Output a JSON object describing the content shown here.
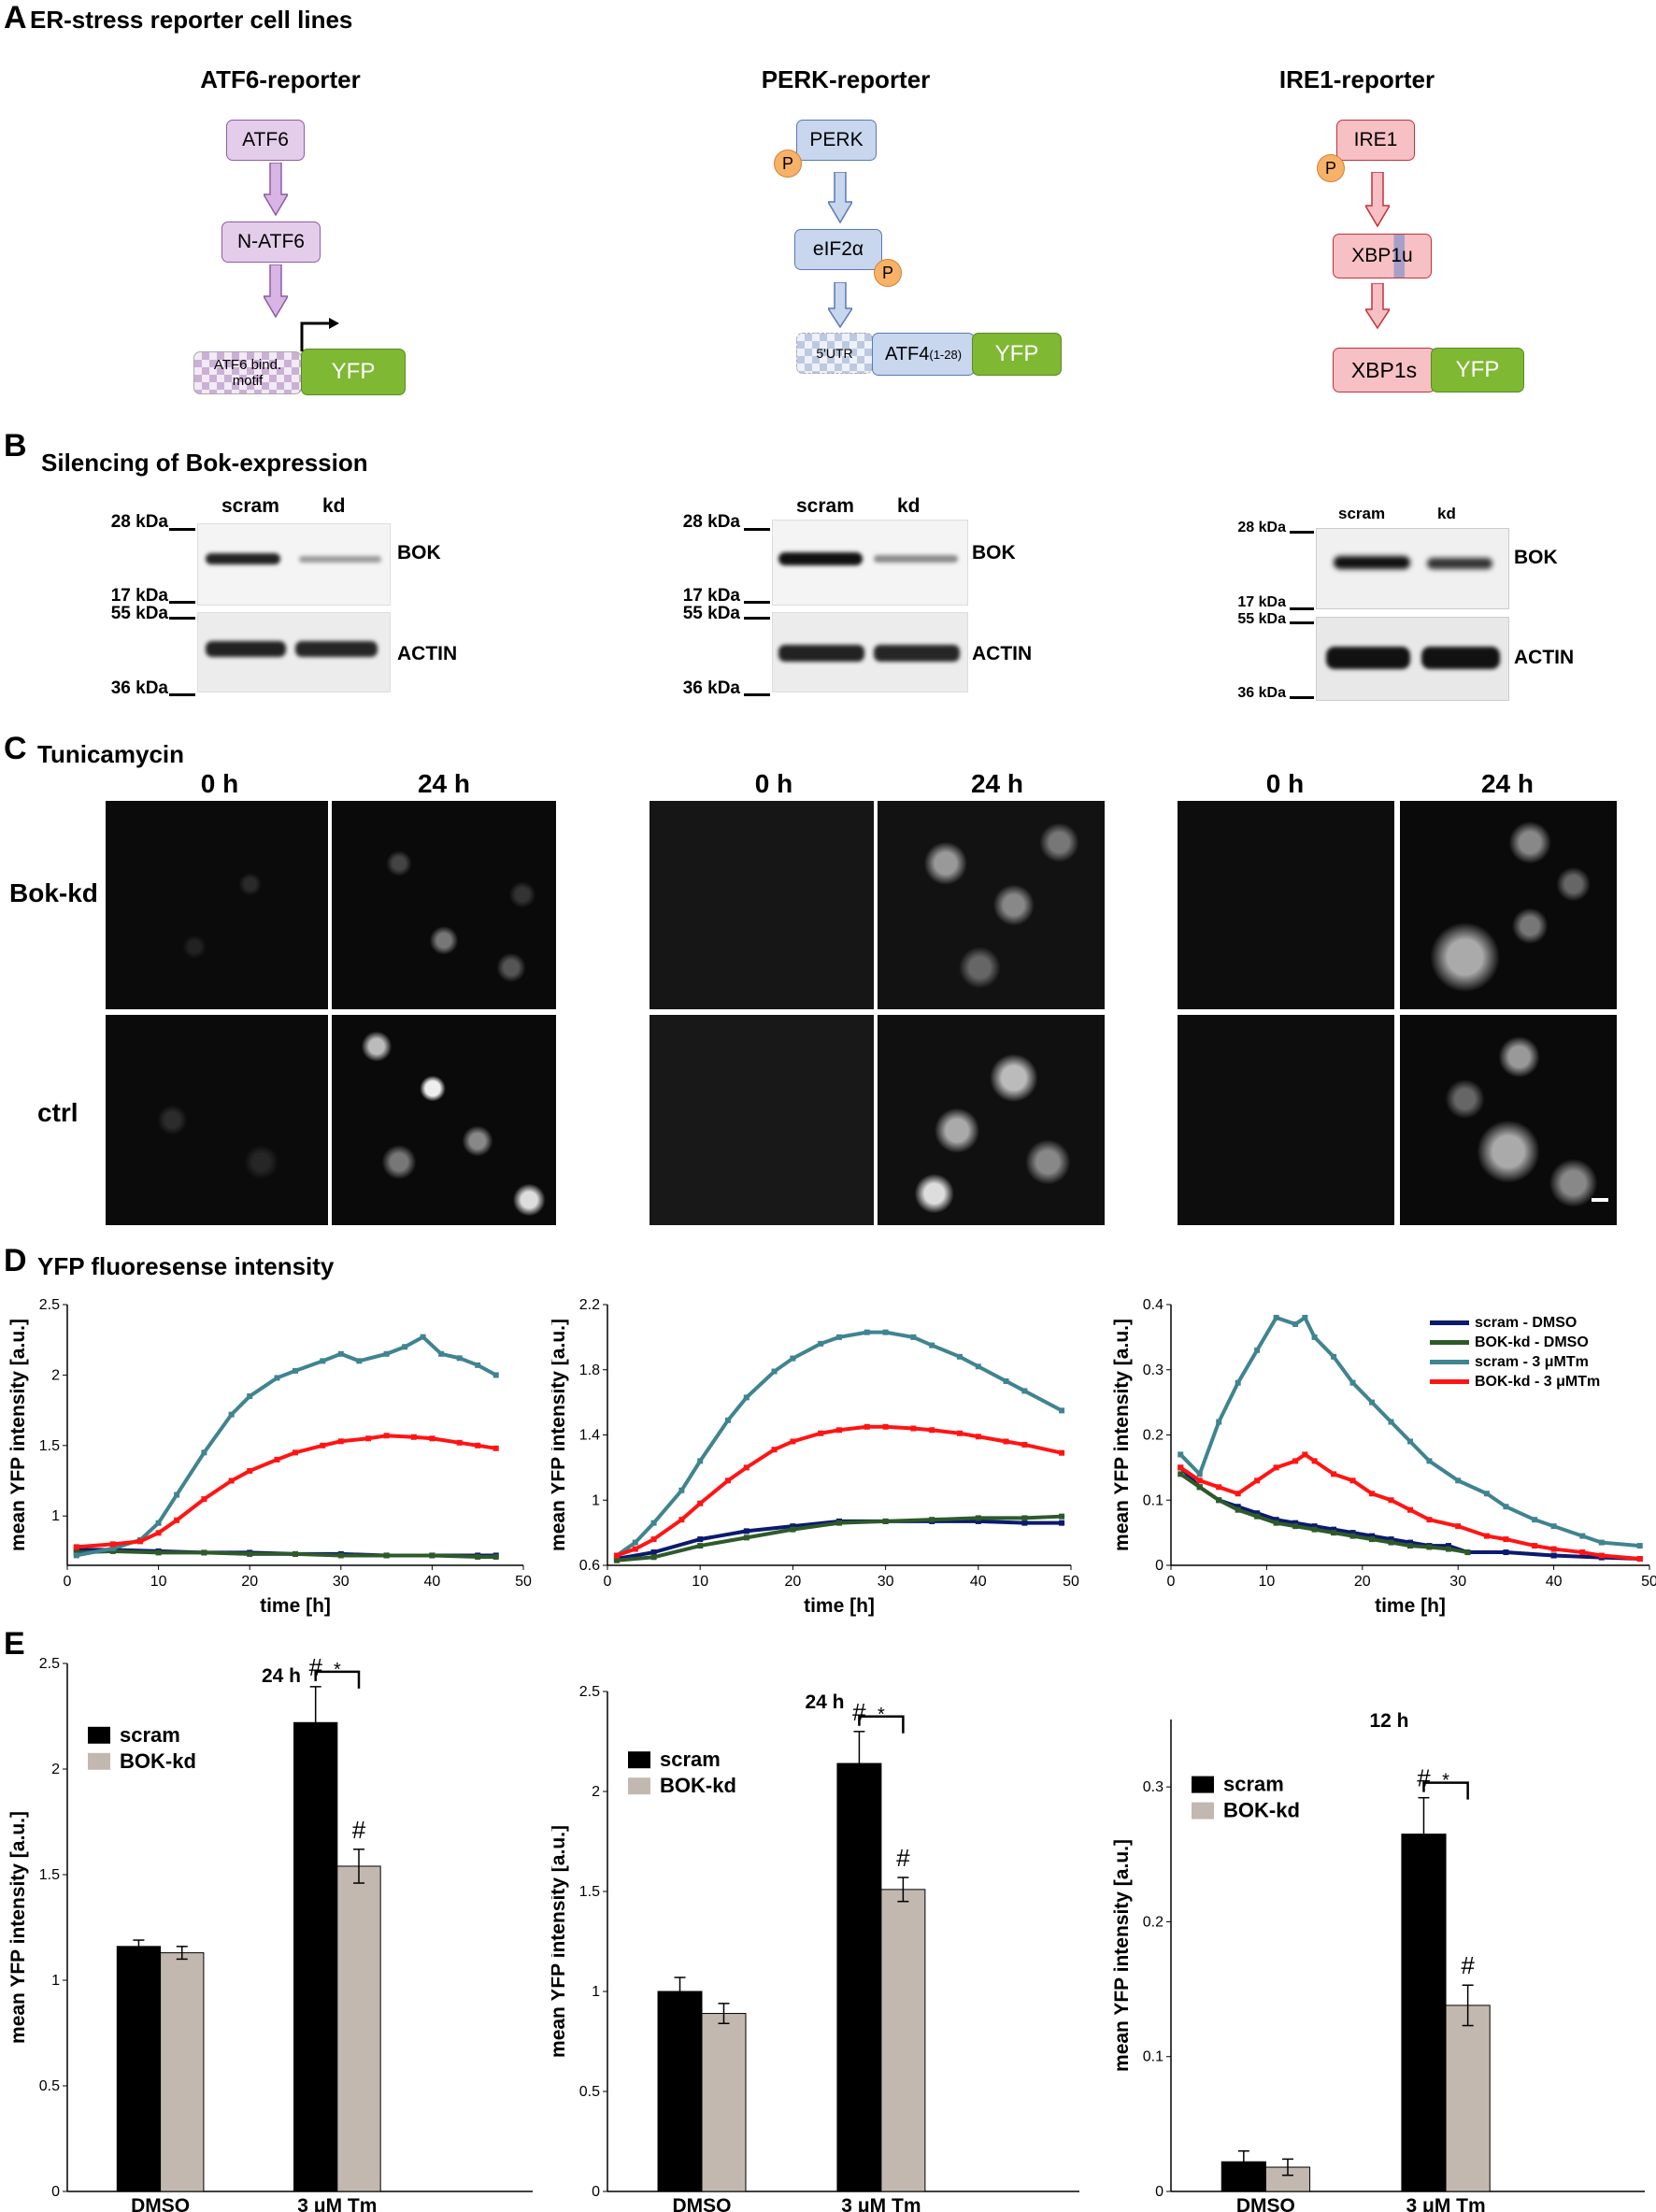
{
  "panelA": {
    "letter": "A",
    "title": "ER-stress reporter cell lines",
    "atf6": {
      "title": "ATF6-reporter",
      "box1": "ATF6",
      "box2": "N-ATF6",
      "motif_line1": "ATF6 bind.",
      "motif_line2": "motif",
      "yfp": "YFP"
    },
    "perk": {
      "title": "PERK-reporter",
      "box1": "PERK",
      "p": "P",
      "box2": "eIF2α",
      "utr": "5'UTR",
      "atf4": "ATF4",
      "atf4_sub": "(1-28)",
      "yfp": "YFP"
    },
    "ire1": {
      "title": "IRE1-reporter",
      "box1": "IRE1",
      "p": "P",
      "box2": "XBP1u",
      "box3": "XBP1s",
      "yfp": "YFP"
    }
  },
  "panelB": {
    "letter": "B",
    "title": "Silencing of Bok-expression",
    "blots": [
      {
        "scram": "scram",
        "kd": "kd",
        "k28": "28 kDa",
        "k17": "17 kDa",
        "k55": "55 kDa",
        "k36": "36 kDa",
        "bok": "BOK",
        "actin": "ACTIN"
      },
      {
        "scram": "scram",
        "kd": "kd",
        "k28": "28 kDa",
        "k17": "17 kDa",
        "k55": "55 kDa",
        "k36": "36 kDa",
        "bok": "BOK",
        "actin": "ACTIN"
      },
      {
        "scram": "scram",
        "kd": "kd",
        "k28": "28 kDa",
        "k17": "17 kDa",
        "k55": "55 kDa",
        "k36": "36 kDa",
        "bok": "BOK",
        "actin": "ACTIN"
      }
    ]
  },
  "panelC": {
    "letter": "C",
    "title": "Tunicamycin",
    "t0": "0 h",
    "t24": "24 h",
    "row1": "Bok-kd",
    "row2": "ctrl"
  },
  "panelD": {
    "letter": "D",
    "title": "YFP fluoresense intensity",
    "xlabel": "time  [h]",
    "ylabel": "mean YFP intensity [a.u.]",
    "legend": [
      "scram    - DMSO",
      "BOK-kd - DMSO",
      "scram    - 3 μMTm",
      "BOK-kd - 3 μMTm"
    ]
  },
  "panelE": {
    "letter": "E",
    "ylabel": "mean YFP intensity [a.u.]",
    "legend_scram": "scram",
    "legend_bok": "BOK-kd",
    "cat1": "DMSO",
    "cat2": "3 μM Tm",
    "hash": "#",
    "star": "*"
  },
  "colors": {
    "scram_dmso": "#0b1a6e",
    "bok_dmso": "#2e5a2a",
    "scram_tm": "#3f8490",
    "bok_tm": "#ff1414",
    "bar_scram": "#000000",
    "bar_bok": "#c2b8af",
    "purple": "#8c5da6",
    "blue": "#5b79b3",
    "red": "#c5303a",
    "green": "#7fb833"
  },
  "chart_data": [
    {
      "type": "line",
      "title": "",
      "xlabel": "time  [h]",
      "ylabel": "mean YFP intensity [a.u.]",
      "xlim": [
        0,
        50
      ],
      "ylim": [
        0.65,
        2.5
      ],
      "xticks": [
        0,
        10,
        20,
        30,
        40,
        50
      ],
      "yticks": [
        1,
        1.5,
        2,
        2.5
      ],
      "series": [
        {
          "name": "scram    - DMSO",
          "x": [
            1,
            5,
            10,
            15,
            20,
            25,
            30,
            35,
            40,
            45,
            47
          ],
          "y": [
            0.76,
            0.76,
            0.75,
            0.74,
            0.74,
            0.73,
            0.73,
            0.72,
            0.72,
            0.72,
            0.72
          ]
        },
        {
          "name": "BOK-kd - DMSO",
          "x": [
            1,
            5,
            10,
            15,
            20,
            25,
            30,
            35,
            40,
            45,
            47
          ],
          "y": [
            0.74,
            0.75,
            0.74,
            0.74,
            0.73,
            0.73,
            0.72,
            0.72,
            0.72,
            0.71,
            0.71
          ]
        },
        {
          "name": "scram    - 3 μMTm",
          "x": [
            1,
            5,
            8,
            10,
            12,
            15,
            18,
            20,
            23,
            25,
            28,
            30,
            32,
            35,
            37,
            39,
            41,
            43,
            45,
            47
          ],
          "y": [
            0.72,
            0.77,
            0.83,
            0.95,
            1.15,
            1.45,
            1.72,
            1.85,
            1.98,
            2.03,
            2.1,
            2.15,
            2.1,
            2.15,
            2.2,
            2.27,
            2.15,
            2.12,
            2.07,
            2.0
          ]
        },
        {
          "name": "BOK-kd - 3 μMTm",
          "x": [
            1,
            5,
            8,
            10,
            12,
            15,
            18,
            20,
            23,
            25,
            28,
            30,
            33,
            35,
            38,
            40,
            43,
            45,
            47
          ],
          "y": [
            0.78,
            0.8,
            0.82,
            0.88,
            0.97,
            1.12,
            1.25,
            1.32,
            1.4,
            1.45,
            1.5,
            1.53,
            1.55,
            1.57,
            1.56,
            1.55,
            1.52,
            1.5,
            1.48
          ]
        }
      ]
    },
    {
      "type": "line",
      "title": "",
      "xlabel": "time  [h]",
      "ylabel": "mean YFP intensity [a.u.]",
      "xlim": [
        0,
        50
      ],
      "ylim": [
        0.6,
        2.2
      ],
      "xticks": [
        0,
        10,
        20,
        30,
        40,
        50
      ],
      "yticks": [
        0.6,
        1,
        1.4,
        1.8,
        2.2
      ],
      "series": [
        {
          "name": "scram    - DMSO",
          "x": [
            1,
            5,
            10,
            15,
            20,
            25,
            30,
            35,
            40,
            45,
            49
          ],
          "y": [
            0.64,
            0.68,
            0.76,
            0.81,
            0.84,
            0.87,
            0.87,
            0.87,
            0.87,
            0.86,
            0.86
          ]
        },
        {
          "name": "BOK-kd - DMSO",
          "x": [
            1,
            5,
            10,
            15,
            20,
            25,
            30,
            35,
            40,
            45,
            49
          ],
          "y": [
            0.63,
            0.65,
            0.72,
            0.77,
            0.82,
            0.86,
            0.87,
            0.88,
            0.89,
            0.89,
            0.9
          ]
        },
        {
          "name": "scram    - 3 μMTm",
          "x": [
            1,
            3,
            5,
            8,
            10,
            13,
            15,
            18,
            20,
            23,
            25,
            28,
            30,
            33,
            35,
            38,
            40,
            43,
            45,
            49
          ],
          "y": [
            0.66,
            0.74,
            0.86,
            1.06,
            1.24,
            1.49,
            1.63,
            1.79,
            1.87,
            1.96,
            2.0,
            2.03,
            2.03,
            2.0,
            1.95,
            1.88,
            1.82,
            1.73,
            1.67,
            1.55
          ]
        },
        {
          "name": "BOK-kd - 3 μMTm",
          "x": [
            1,
            3,
            5,
            8,
            10,
            13,
            15,
            18,
            20,
            23,
            25,
            28,
            30,
            33,
            35,
            38,
            40,
            43,
            45,
            49
          ],
          "y": [
            0.66,
            0.7,
            0.76,
            0.88,
            0.98,
            1.12,
            1.2,
            1.31,
            1.36,
            1.41,
            1.43,
            1.45,
            1.45,
            1.44,
            1.43,
            1.41,
            1.39,
            1.36,
            1.34,
            1.29
          ]
        }
      ]
    },
    {
      "type": "line",
      "title": "",
      "xlabel": "time  [h]",
      "ylabel": "mean YFP intensity [a.u.]",
      "xlim": [
        0,
        50
      ],
      "ylim": [
        0,
        0.4
      ],
      "xticks": [
        0,
        10,
        20,
        30,
        40,
        50
      ],
      "yticks": [
        0,
        0.1,
        0.2,
        0.3,
        0.4
      ],
      "series": [
        {
          "name": "scram    - DMSO",
          "x": [
            1,
            3,
            5,
            7,
            9,
            11,
            13,
            15,
            17,
            19,
            21,
            23,
            25,
            27,
            29,
            31,
            35,
            40,
            45,
            49
          ],
          "y": [
            0.15,
            0.12,
            0.1,
            0.09,
            0.08,
            0.07,
            0.065,
            0.06,
            0.055,
            0.05,
            0.045,
            0.04,
            0.035,
            0.03,
            0.03,
            0.02,
            0.02,
            0.015,
            0.012,
            0.01
          ]
        },
        {
          "name": "BOK-kd - DMSO",
          "x": [
            1,
            3,
            5,
            7,
            9,
            11,
            13,
            15,
            17,
            19,
            21,
            23,
            25,
            27,
            29,
            31
          ],
          "y": [
            0.14,
            0.12,
            0.1,
            0.085,
            0.075,
            0.065,
            0.06,
            0.055,
            0.05,
            0.045,
            0.04,
            0.035,
            0.03,
            0.028,
            0.025,
            0.02
          ]
        },
        {
          "name": "scram    - 3 μMTm",
          "x": [
            1,
            3,
            5,
            7,
            9,
            11,
            13,
            14,
            15,
            17,
            19,
            21,
            23,
            25,
            27,
            30,
            33,
            35,
            38,
            40,
            43,
            45,
            49
          ],
          "y": [
            0.17,
            0.14,
            0.22,
            0.28,
            0.33,
            0.38,
            0.37,
            0.38,
            0.35,
            0.32,
            0.28,
            0.25,
            0.22,
            0.19,
            0.16,
            0.13,
            0.11,
            0.09,
            0.07,
            0.06,
            0.045,
            0.035,
            0.03
          ]
        },
        {
          "name": "BOK-kd - 3 μMTm",
          "x": [
            1,
            3,
            5,
            7,
            9,
            11,
            13,
            14,
            15,
            17,
            19,
            21,
            23,
            25,
            27,
            30,
            33,
            35,
            38,
            40,
            43,
            45,
            49
          ],
          "y": [
            0.15,
            0.13,
            0.12,
            0.11,
            0.13,
            0.15,
            0.16,
            0.17,
            0.16,
            0.14,
            0.13,
            0.11,
            0.1,
            0.085,
            0.07,
            0.06,
            0.045,
            0.04,
            0.03,
            0.025,
            0.02,
            0.015,
            0.01
          ]
        }
      ]
    },
    {
      "type": "bar",
      "title": "24 h",
      "xlabel": "",
      "ylabel": "mean YFP intensity [a.u.]",
      "ylim": [
        0,
        2.5
      ],
      "yticks": [
        0,
        0.5,
        1,
        1.5,
        2,
        2.5
      ],
      "categories": [
        "DMSO",
        "3 μM Tm"
      ],
      "series": [
        {
          "name": "scram",
          "values": [
            1.16,
            2.22
          ],
          "errors": [
            0.03,
            0.17
          ]
        },
        {
          "name": "BOK-kd",
          "values": [
            1.13,
            1.54
          ],
          "errors": [
            0.03,
            0.08
          ]
        }
      ]
    },
    {
      "type": "bar",
      "title": "24 h",
      "xlabel": "",
      "ylabel": "mean YFP intensity [a.u.]",
      "ylim": [
        0,
        2.5
      ],
      "yticks": [
        0,
        0.5,
        1,
        1.5,
        2,
        2.5
      ],
      "categories": [
        "DMSO",
        "3 μM Tm"
      ],
      "series": [
        {
          "name": "scram",
          "values": [
            1.0,
            2.14
          ],
          "errors": [
            0.07,
            0.16
          ]
        },
        {
          "name": "BOK-kd",
          "values": [
            0.89,
            1.51
          ],
          "errors": [
            0.05,
            0.06
          ]
        }
      ]
    },
    {
      "type": "bar",
      "title": "12 h",
      "xlabel": "",
      "ylabel": "mean YFP intensity [a.u.]",
      "ylim": [
        0,
        0.35
      ],
      "yticks": [
        0,
        0.1,
        0.2,
        0.3
      ],
      "categories": [
        "DMSO",
        "3 μM Tm"
      ],
      "series": [
        {
          "name": "scram",
          "values": [
            0.022,
            0.265
          ],
          "errors": [
            0.008,
            0.027
          ]
        },
        {
          "name": "BOK-kd",
          "values": [
            0.018,
            0.138
          ],
          "errors": [
            0.006,
            0.015
          ]
        }
      ]
    }
  ]
}
